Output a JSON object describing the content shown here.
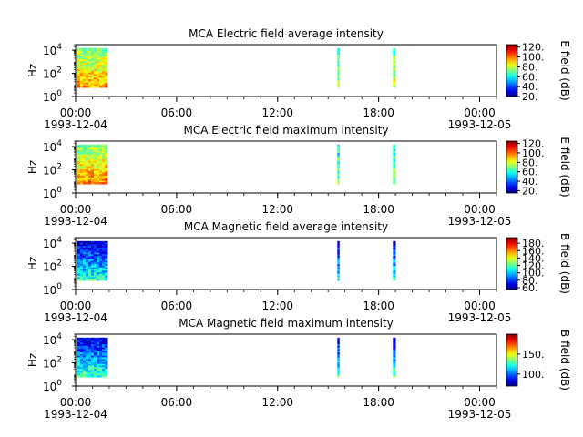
{
  "chart_data": [
    {
      "type": "heatmap",
      "title": "MCA  Electric field average intensity",
      "ylabel": "Hz",
      "ylim": [
        1,
        30000
      ],
      "y_scale": "log",
      "y_ticks": [
        {
          "base": "10",
          "exp": "0"
        },
        {
          "base": "10",
          "exp": "2"
        },
        {
          "base": "10",
          "exp": "4"
        }
      ],
      "x_range": [
        0,
        25
      ],
      "x_ticks": [
        {
          "h": 0,
          "label": "00:00"
        },
        {
          "h": 6,
          "label": "06:00"
        },
        {
          "h": 12,
          "label": "12:00"
        },
        {
          "h": 18,
          "label": "18:00"
        },
        {
          "h": 24,
          "label": "00:00"
        }
      ],
      "x_date_labels": [
        {
          "h": 0,
          "label": "1993-12-04"
        },
        {
          "h": 24,
          "label": "1993-12-05"
        }
      ],
      "colorbar": {
        "label": "E field (dB)",
        "range": [
          20,
          125
        ],
        "ticks": [
          "20.",
          "40.",
          "60.",
          "80.",
          "100.",
          "120."
        ],
        "tick_values": [
          20,
          40,
          60,
          80,
          100,
          120
        ]
      },
      "data_blocks": [
        {
          "start_h": 0.1,
          "end_h": 1.9,
          "level_low": 0.72,
          "level_high": 0.5
        },
        {
          "start_h": 15.55,
          "end_h": 15.65,
          "level_low": 0.55,
          "level_high": 0.4
        },
        {
          "start_h": 18.85,
          "end_h": 19.0,
          "level_low": 0.6,
          "level_high": 0.45
        }
      ]
    },
    {
      "type": "heatmap",
      "title": "MCA  Electric field maximum intensity",
      "ylabel": "Hz",
      "ylim": [
        1,
        30000
      ],
      "y_scale": "log",
      "y_ticks": [
        {
          "base": "10",
          "exp": "0"
        },
        {
          "base": "10",
          "exp": "2"
        },
        {
          "base": "10",
          "exp": "4"
        }
      ],
      "x_range": [
        0,
        25
      ],
      "x_ticks": [
        {
          "h": 0,
          "label": "00:00"
        },
        {
          "h": 6,
          "label": "06:00"
        },
        {
          "h": 12,
          "label": "12:00"
        },
        {
          "h": 18,
          "label": "18:00"
        },
        {
          "h": 24,
          "label": "00:00"
        }
      ],
      "x_date_labels": [
        {
          "h": 0,
          "label": "1993-12-04"
        },
        {
          "h": 24,
          "label": "1993-12-05"
        }
      ],
      "colorbar": {
        "label": "E field (dB)",
        "range": [
          15,
          125
        ],
        "ticks": [
          "20.",
          "40.",
          "60.",
          "80.",
          "100.",
          "120."
        ],
        "tick_values": [
          20,
          40,
          60,
          80,
          100,
          120
        ]
      },
      "data_blocks": [
        {
          "start_h": 0.1,
          "end_h": 1.9,
          "level_low": 0.75,
          "level_high": 0.5
        },
        {
          "start_h": 15.55,
          "end_h": 15.65,
          "level_low": 0.5,
          "level_high": 0.35
        },
        {
          "start_h": 18.85,
          "end_h": 19.0,
          "level_low": 0.55,
          "level_high": 0.4
        }
      ]
    },
    {
      "type": "heatmap",
      "title": "MCA  Magnetic field average intensity",
      "ylabel": "Hz",
      "ylim": [
        1,
        30000
      ],
      "y_scale": "log",
      "y_ticks": [
        {
          "base": "10",
          "exp": "0"
        },
        {
          "base": "10",
          "exp": "2"
        },
        {
          "base": "10",
          "exp": "4"
        }
      ],
      "x_range": [
        0,
        25
      ],
      "x_ticks": [
        {
          "h": 0,
          "label": "00:00"
        },
        {
          "h": 6,
          "label": "06:00"
        },
        {
          "h": 12,
          "label": "12:00"
        },
        {
          "h": 18,
          "label": "18:00"
        },
        {
          "h": 24,
          "label": "00:00"
        }
      ],
      "x_date_labels": [
        {
          "h": 0,
          "label": "1993-12-04"
        },
        {
          "h": 24,
          "label": "1993-12-05"
        }
      ],
      "colorbar": {
        "label": "B field (dB)",
        "range": [
          55,
          195
        ],
        "ticks": [
          "60.",
          "80.",
          "100.",
          "120.",
          "140.",
          "160.",
          "180."
        ],
        "tick_values": [
          60,
          80,
          100,
          120,
          140,
          160,
          180
        ]
      },
      "data_blocks": [
        {
          "start_h": 0.1,
          "end_h": 1.9,
          "level_low": 0.42,
          "level_high": 0.08
        },
        {
          "start_h": 15.55,
          "end_h": 15.65,
          "level_low": 0.4,
          "level_high": 0.08
        },
        {
          "start_h": 18.85,
          "end_h": 19.0,
          "level_low": 0.4,
          "level_high": 0.08
        }
      ]
    },
    {
      "type": "heatmap",
      "title": "MCA  Magnetic field maximum intensity",
      "ylabel": "Hz",
      "ylim": [
        1,
        30000
      ],
      "y_scale": "log",
      "y_ticks": [
        {
          "base": "10",
          "exp": "0"
        },
        {
          "base": "10",
          "exp": "2"
        },
        {
          "base": "10",
          "exp": "4"
        }
      ],
      "x_range": [
        0,
        25
      ],
      "x_ticks": [
        {
          "h": 0,
          "label": "00:00"
        },
        {
          "h": 6,
          "label": "06:00"
        },
        {
          "h": 12,
          "label": "12:00"
        },
        {
          "h": 18,
          "label": "18:00"
        },
        {
          "h": 24,
          "label": "00:00"
        }
      ],
      "x_date_labels": [
        {
          "h": 0,
          "label": "1993-12-04"
        },
        {
          "h": 24,
          "label": "1993-12-05"
        }
      ],
      "colorbar": {
        "label": "B field (dB)",
        "range": [
          70,
          200
        ],
        "ticks": [
          "100.",
          "150."
        ],
        "tick_values": [
          100,
          150
        ]
      },
      "data_blocks": [
        {
          "start_h": 0.1,
          "end_h": 1.9,
          "level_low": 0.45,
          "level_high": 0.1
        },
        {
          "start_h": 15.55,
          "end_h": 15.65,
          "level_low": 0.45,
          "level_high": 0.08
        },
        {
          "start_h": 18.85,
          "end_h": 19.0,
          "level_low": 0.45,
          "level_high": 0.08
        }
      ]
    }
  ]
}
